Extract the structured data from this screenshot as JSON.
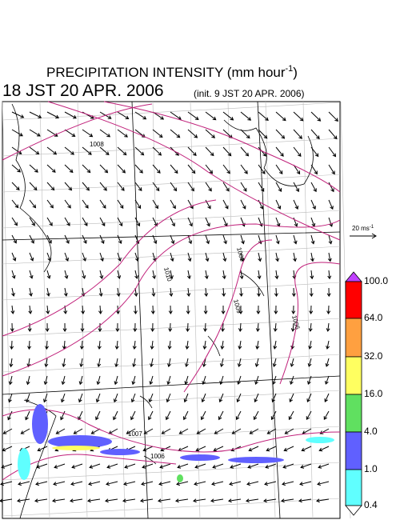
{
  "title": {
    "text": "PRECIPITATION INTENSITY (mm hour",
    "exponent": "-1",
    "close": ")"
  },
  "valid_time": "18 JST 20 APR. 2006",
  "init_time": "(init. 9 JST 20 APR. 2006)",
  "vector_scale": {
    "text": "20 ms",
    "exponent": "-1"
  },
  "isobar_labels": [
    "1008",
    "1010",
    "1008",
    "1009",
    "1006",
    "1007",
    "1006"
  ],
  "colorbar": {
    "labels": [
      "100.0",
      "64.0",
      "32.0",
      "16.0",
      "4.0",
      "1.0",
      "0.4"
    ]
  }
}
